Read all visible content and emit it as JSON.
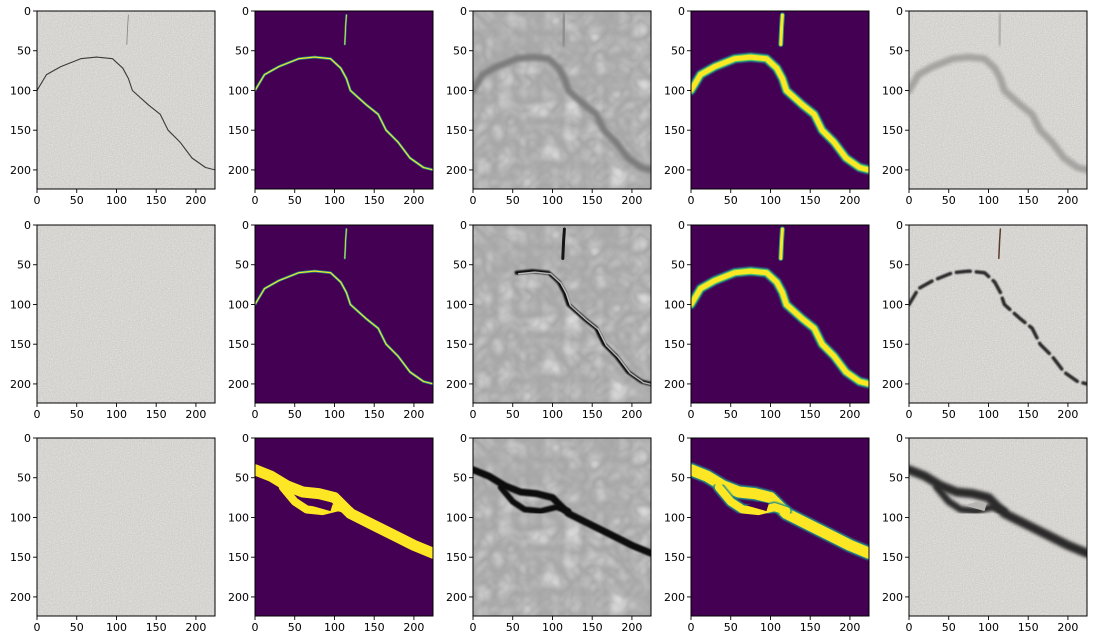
{
  "figure": {
    "rows": 3,
    "cols": 5,
    "axis_range": [
      0,
      224
    ],
    "x_ticks": [
      0,
      50,
      100,
      150,
      200
    ],
    "y_ticks": [
      0,
      50,
      100,
      150,
      200
    ],
    "x_tick_labels": [
      "0",
      "50",
      "100",
      "150",
      "200"
    ],
    "y_tick_labels": [
      "0",
      "50",
      "100",
      "150",
      "200"
    ],
    "colors": {
      "concrete": "#c9c7c3",
      "viridis_dark": "#440154",
      "viridis_teal": "#21918c",
      "viridis_green": "#5ec962",
      "viridis_yellow": "#fde725",
      "generated_gray": "#a7a7a7",
      "crack_dark": "#2a2a2a"
    },
    "panels": [
      {
        "row": 0,
        "col": 0,
        "kind": "concrete-thin-crack",
        "mask": "A"
      },
      {
        "row": 0,
        "col": 1,
        "kind": "viridis-mask-thin",
        "mask": "A"
      },
      {
        "row": 0,
        "col": 2,
        "kind": "generated-gray",
        "mask": "A"
      },
      {
        "row": 0,
        "col": 3,
        "kind": "viridis-mask-blur",
        "mask": "A"
      },
      {
        "row": 0,
        "col": 4,
        "kind": "concrete-faint-crack",
        "mask": "A"
      },
      {
        "row": 1,
        "col": 0,
        "kind": "concrete-plain",
        "mask": "A"
      },
      {
        "row": 1,
        "col": 1,
        "kind": "viridis-mask-thin",
        "mask": "A"
      },
      {
        "row": 1,
        "col": 2,
        "kind": "generated-dark-crack",
        "mask": "A"
      },
      {
        "row": 1,
        "col": 3,
        "kind": "viridis-mask-blur",
        "mask": "A"
      },
      {
        "row": 1,
        "col": 4,
        "kind": "concrete-dark-crack",
        "mask": "A"
      },
      {
        "row": 2,
        "col": 0,
        "kind": "concrete-plain",
        "mask": "B"
      },
      {
        "row": 2,
        "col": 1,
        "kind": "viridis-mask-thick",
        "mask": "B"
      },
      {
        "row": 2,
        "col": 2,
        "kind": "generated-dark-crack",
        "mask": "B"
      },
      {
        "row": 2,
        "col": 3,
        "kind": "viridis-mask-thick-blur",
        "mask": "B"
      },
      {
        "row": 2,
        "col": 4,
        "kind": "concrete-dark-crack",
        "mask": "B"
      }
    ],
    "masks": {
      "A": {
        "main": [
          [
            0,
            100
          ],
          [
            12,
            80
          ],
          [
            30,
            70
          ],
          [
            55,
            60
          ],
          [
            75,
            58
          ],
          [
            95,
            60
          ],
          [
            108,
            72
          ],
          [
            115,
            85
          ],
          [
            120,
            100
          ],
          [
            140,
            118
          ],
          [
            155,
            130
          ],
          [
            165,
            150
          ],
          [
            180,
            165
          ],
          [
            195,
            185
          ],
          [
            212,
            197
          ],
          [
            224,
            200
          ]
        ],
        "branch": [
          [
            115,
            5
          ],
          [
            114,
            20
          ],
          [
            113,
            42
          ]
        ]
      },
      "B": {
        "upper": [
          [
            0,
            40
          ],
          [
            20,
            48
          ],
          [
            40,
            60
          ],
          [
            60,
            68
          ],
          [
            80,
            70
          ],
          [
            100,
            75
          ],
          [
            120,
            95
          ],
          [
            150,
            110
          ],
          [
            180,
            125
          ],
          [
            200,
            135
          ],
          [
            224,
            145
          ]
        ],
        "lower": [
          [
            35,
            62
          ],
          [
            50,
            80
          ],
          [
            65,
            90
          ],
          [
            85,
            92
          ],
          [
            105,
            87
          ],
          [
            120,
            92
          ]
        ],
        "island": [
          [
            70,
            85
          ],
          [
            85,
            80
          ],
          [
            98,
            82
          ],
          [
            95,
            92
          ]
        ]
      }
    }
  }
}
